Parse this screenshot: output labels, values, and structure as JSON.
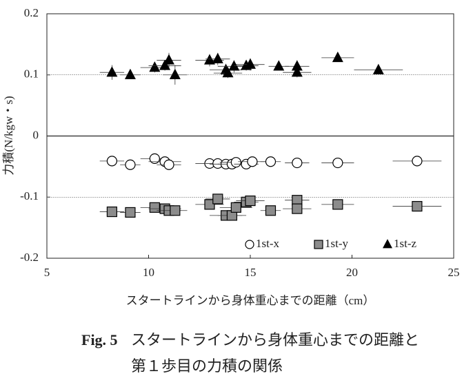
{
  "chart_data": {
    "type": "scatter",
    "xlabel": "スタートラインから身体重心までの距離（cm）",
    "ylabel": "力積(N/kgw・s)",
    "xlim": [
      5,
      25
    ],
    "xticks": [
      5,
      10,
      15,
      20,
      25
    ],
    "ylim": [
      -0.2,
      0.2
    ],
    "yticks": [
      0.2,
      0.1,
      0,
      -0.1,
      -0.2
    ],
    "grid": "dotted",
    "legend": "lower right",
    "series": [
      {
        "name": "1st-x",
        "marker": "circle",
        "color": "#ffffff",
        "x": [
          8.2,
          9.1,
          10.3,
          10.8,
          11.0,
          13.0,
          13.4,
          13.8,
          14.1,
          14.3,
          14.8,
          15.1,
          16.0,
          17.3,
          19.3,
          23.2
        ],
        "values": [
          -0.041,
          -0.047,
          -0.037,
          -0.042,
          -0.047,
          -0.045,
          -0.045,
          -0.046,
          -0.046,
          -0.043,
          -0.046,
          -0.042,
          -0.042,
          -0.044,
          -0.044,
          -0.041
        ],
        "xerr": [
          0.6,
          0.5,
          0.7,
          0.8,
          0.6,
          0.7,
          0.6,
          0.8,
          0.7,
          0.8,
          0.6,
          0.7,
          0.5,
          0.6,
          0.8,
          1.2
        ],
        "yerr": [
          0.004,
          0.004,
          0.005,
          0.005,
          0.006,
          0.004,
          0.004,
          0.004,
          0.004,
          0.004,
          0.004,
          0.004,
          0.004,
          0.004,
          0.004,
          0.004
        ]
      },
      {
        "name": "1st-y",
        "marker": "square",
        "color": "#8c8c8c",
        "x": [
          8.2,
          9.1,
          10.3,
          10.8,
          11.0,
          11.3,
          13.0,
          13.4,
          13.8,
          14.1,
          14.3,
          14.8,
          15.0,
          16.0,
          17.3,
          17.3,
          19.3,
          23.2
        ],
        "values": [
          -0.124,
          -0.125,
          -0.117,
          -0.119,
          -0.122,
          -0.122,
          -0.112,
          -0.103,
          -0.13,
          -0.13,
          -0.117,
          -0.108,
          -0.106,
          -0.122,
          -0.105,
          -0.119,
          -0.112,
          -0.115
        ],
        "xerr": [
          0.6,
          0.5,
          0.7,
          0.8,
          0.6,
          0.6,
          0.7,
          0.6,
          0.8,
          0.7,
          0.8,
          0.6,
          0.7,
          0.5,
          0.6,
          0.7,
          0.8,
          1.2
        ],
        "yerr": [
          0.005,
          0.005,
          0.005,
          0.005,
          0.005,
          0.005,
          0.005,
          0.006,
          0.005,
          0.005,
          0.005,
          0.005,
          0.005,
          0.005,
          0.006,
          0.005,
          0.005,
          0.005
        ]
      },
      {
        "name": "1st-z",
        "marker": "triangle",
        "color": "#000000",
        "x": [
          8.2,
          9.1,
          10.3,
          10.8,
          11.0,
          11.3,
          13.0,
          13.4,
          13.8,
          13.9,
          14.2,
          14.8,
          15.0,
          16.4,
          17.3,
          17.3,
          19.3,
          21.3
        ],
        "values": [
          0.104,
          0.1,
          0.112,
          0.115,
          0.124,
          0.1,
          0.124,
          0.126,
          0.108,
          0.103,
          0.114,
          0.115,
          0.117,
          0.114,
          0.114,
          0.104,
          0.128,
          0.108
        ],
        "xerr": [
          0.6,
          0.5,
          0.7,
          0.8,
          0.6,
          0.6,
          0.7,
          0.6,
          0.8,
          0.7,
          0.8,
          0.6,
          0.7,
          0.5,
          0.6,
          0.7,
          0.8,
          1.2
        ],
        "yerr": [
          0.012,
          0.005,
          0.008,
          0.008,
          0.012,
          0.016,
          0.01,
          0.01,
          0.01,
          0.008,
          0.01,
          0.008,
          0.01,
          0.006,
          0.01,
          0.008,
          0.006,
          0.006
        ]
      }
    ]
  },
  "caption": {
    "label": "Fig. 5",
    "lines": [
      "スタートラインから身体重心までの距離と",
      "第１歩目の力積の関係"
    ]
  }
}
